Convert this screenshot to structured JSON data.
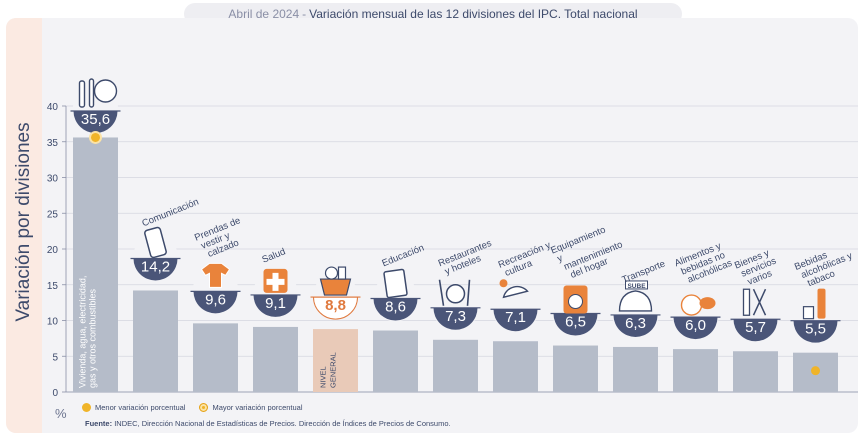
{
  "header": {
    "date": "Abril de 2024",
    "separator": "-",
    "title": "Variación mensual de las 12 divisiones del IPC. Total nacional"
  },
  "axis": {
    "ylabel": "Variación por divisiones",
    "unit": "%"
  },
  "legend": {
    "min_label": "Menor variación porcentual",
    "max_label": "Mayor variación porcentual"
  },
  "source": {
    "prefix": "Fuente:",
    "text": "INDEC, Dirección Nacional de Estadísticas de Precios. Dirección de Índices de Precios de Consumo."
  },
  "colors": {
    "bar": "#b5bcc9",
    "bar_highlight": "#e9cab8",
    "badge": "#4a5578",
    "highlight_text": "#e07a3f",
    "marker": "#f0b429",
    "icon_accent": "#e9833b"
  },
  "chart_data": {
    "type": "bar",
    "ylim": [
      0,
      40
    ],
    "yticks": [
      0,
      5,
      10,
      15,
      20,
      25,
      30,
      35,
      40
    ],
    "grid": true,
    "legend_position": "bottom-left",
    "categories": [
      {
        "label": "Vivienda, agua, electricidad, gas y otros combustibles",
        "label_mode": "inside",
        "value": 35.6,
        "display": "35,6",
        "icon": "tools-bulb-icon",
        "marker": "max"
      },
      {
        "label": "Comunicación",
        "label_mode": "above",
        "value": 14.2,
        "display": "14,2",
        "icon": "smartphone-icon"
      },
      {
        "label": "Prendas de vestir y calzado",
        "label_mode": "above",
        "value": 9.6,
        "display": "9,6",
        "icon": "tshirt-icon"
      },
      {
        "label": "Salud",
        "label_mode": "above",
        "value": 9.1,
        "display": "9,1",
        "icon": "medical-cross-icon"
      },
      {
        "label": "NIVEL GENERAL",
        "label_mode": "inside",
        "value": 8.8,
        "display": "8,8",
        "icon": "shopping-basket-icon",
        "highlight": true
      },
      {
        "label": "Educación",
        "label_mode": "above",
        "value": 8.6,
        "display": "8,6",
        "icon": "notebook-icon"
      },
      {
        "label": "Restaurantes y hoteles",
        "label_mode": "above",
        "value": 7.3,
        "display": "7,3",
        "icon": "cutlery-icon"
      },
      {
        "label": "Recreación y cultura",
        "label_mode": "above",
        "value": 7.1,
        "display": "7,1",
        "icon": "beach-umbrella-icon"
      },
      {
        "label": "Equipamiento y mantenimiento del hogar",
        "label_mode": "above",
        "value": 6.5,
        "display": "6,5",
        "icon": "washing-machine-icon"
      },
      {
        "label": "Transporte",
        "label_mode": "above",
        "value": 6.3,
        "display": "6,3",
        "icon": "bus-icon",
        "sign": "SUBE"
      },
      {
        "label": "Alimentos y bebidas no alcohólicas",
        "label_mode": "above",
        "value": 6.0,
        "display": "6,0",
        "icon": "food-icon"
      },
      {
        "label": "Bienes y servicios varios",
        "label_mode": "above",
        "value": 5.7,
        "display": "5,7",
        "icon": "comb-scissors-icon"
      },
      {
        "label": "Bebidas alcohólicas y tabaco",
        "label_mode": "above",
        "value": 5.5,
        "display": "5,5",
        "icon": "bottle-icon",
        "marker": "min"
      }
    ]
  }
}
